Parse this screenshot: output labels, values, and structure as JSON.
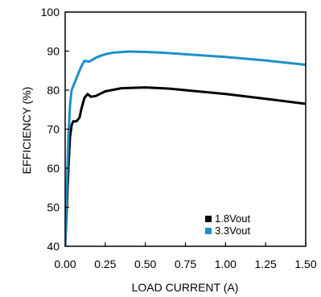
{
  "chart_data": {
    "type": "line",
    "xlabel": "LOAD CURRENT (A)",
    "ylabel": "EFFICIENCY (%)",
    "xlim": [
      0,
      1.5
    ],
    "ylim": [
      40,
      100
    ],
    "xticks": [
      "0.00",
      "0.25",
      "0.50",
      "0.75",
      "1.00",
      "1.25",
      "1.50"
    ],
    "yticks": [
      "40",
      "50",
      "60",
      "70",
      "80",
      "90",
      "100"
    ],
    "grid": false,
    "legend_position": "bottom-right",
    "series": [
      {
        "name": "1.8Vout",
        "color": "#000000",
        "x": [
          0.0,
          0.01,
          0.02,
          0.03,
          0.04,
          0.05,
          0.07,
          0.09,
          0.1,
          0.12,
          0.14,
          0.16,
          0.19,
          0.25,
          0.35,
          0.5,
          0.65,
          0.8,
          1.0,
          1.25,
          1.5
        ],
        "y": [
          40.0,
          50.0,
          60.0,
          68.0,
          71.0,
          72.0,
          72.0,
          73.0,
          75.0,
          78.0,
          79.0,
          78.3,
          78.5,
          79.7,
          80.5,
          80.7,
          80.4,
          79.8,
          79.0,
          77.8,
          76.5
        ]
      },
      {
        "name": "3.3Vout",
        "color": "#1f8fc7",
        "x": [
          0.0,
          0.01,
          0.02,
          0.03,
          0.04,
          0.06,
          0.08,
          0.1,
          0.12,
          0.15,
          0.2,
          0.25,
          0.3,
          0.4,
          0.5,
          0.6,
          0.75,
          1.0,
          1.25,
          1.5
        ],
        "y": [
          40.0,
          55.0,
          68.0,
          76.0,
          80.0,
          82.0,
          84.0,
          86.0,
          87.5,
          87.3,
          88.5,
          89.2,
          89.6,
          89.9,
          89.8,
          89.6,
          89.2,
          88.5,
          87.6,
          86.5
        ]
      }
    ]
  }
}
